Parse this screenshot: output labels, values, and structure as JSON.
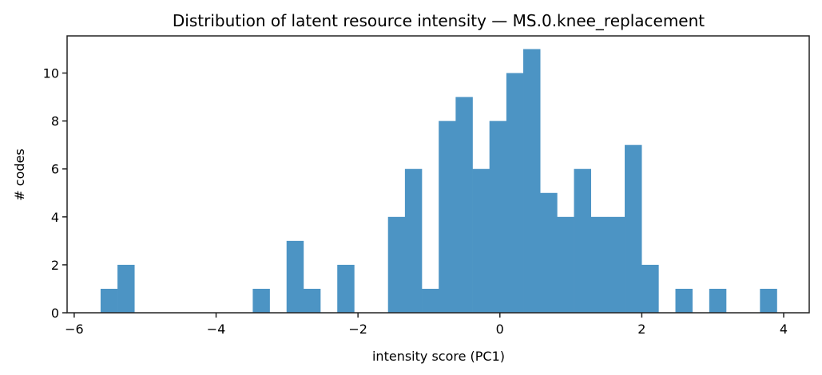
{
  "chart_data": {
    "type": "bar",
    "title": "Distribution of latent resource intensity — MS.0.knee_replacement",
    "xlabel": "intensity score (PC1)",
    "ylabel": "# codes",
    "xlim": [
      -6.1,
      4.36
    ],
    "ylim": [
      0,
      11.55
    ],
    "grid": false,
    "legend": null,
    "bar_color": "#4c94c4",
    "x_ticks": [
      -6,
      -4,
      -2,
      0,
      2,
      4
    ],
    "x_tick_labels": [
      "−6",
      "−4",
      "−2",
      "0",
      "2",
      "4"
    ],
    "y_ticks": [
      0,
      2,
      4,
      6,
      8,
      10
    ],
    "y_tick_labels": [
      "0",
      "2",
      "4",
      "6",
      "8",
      "10"
    ],
    "bin_start": -5.628,
    "bin_width": 0.2383,
    "bins": 40,
    "counts": [
      1,
      2,
      0,
      0,
      0,
      0,
      0,
      0,
      0,
      1,
      0,
      3,
      1,
      0,
      2,
      0,
      0,
      4,
      6,
      1,
      8,
      9,
      6,
      8,
      10,
      11,
      5,
      4,
      6,
      4,
      4,
      7,
      2,
      0,
      1,
      0,
      1,
      0,
      0,
      1
    ],
    "total": 108
  }
}
